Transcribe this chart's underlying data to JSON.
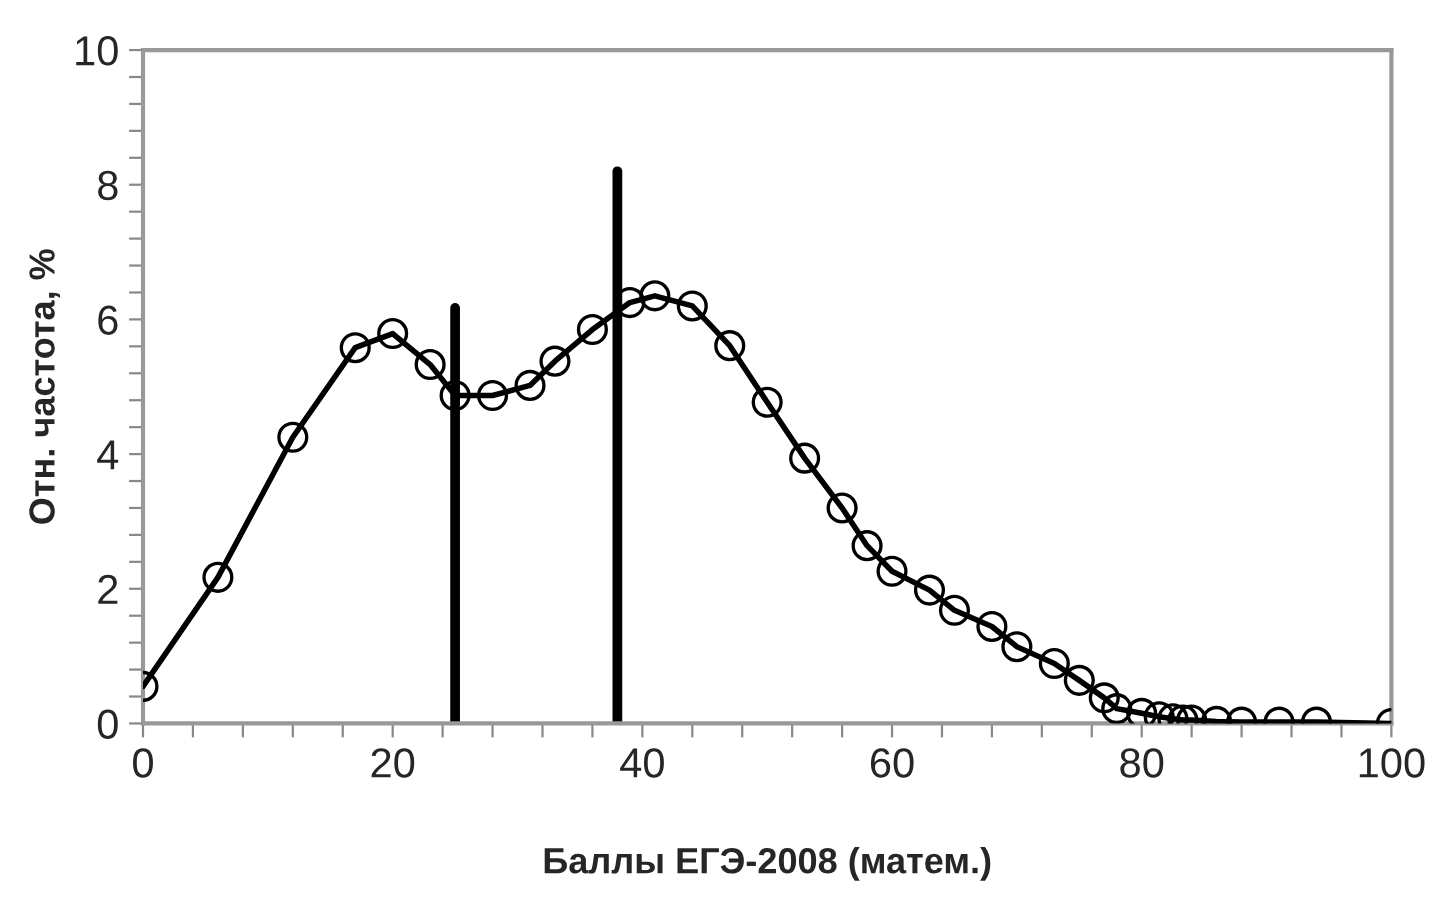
{
  "chart_data": {
    "type": "line",
    "xlabel": "Баллы ЕГЭ-2008 (матем.)",
    "ylabel": "Отн. частота, %",
    "xlim": [
      0,
      100
    ],
    "ylim": [
      0,
      10
    ],
    "xticks": [
      0,
      {
        "value": 4,
        "label": null
      },
      {
        "value": 8,
        "label": null
      },
      {
        "value": 12,
        "label": null
      },
      {
        "value": 16,
        "label": null
      },
      20,
      {
        "value": 24,
        "label": null
      },
      {
        "value": 28,
        "label": null
      },
      {
        "value": 32,
        "label": null
      },
      {
        "value": 36,
        "label": null
      },
      40,
      {
        "value": 44,
        "label": null
      },
      {
        "value": 48,
        "label": null
      },
      {
        "value": 52,
        "label": null
      },
      {
        "value": 56,
        "label": null
      },
      60,
      {
        "value": 64,
        "label": null
      },
      {
        "value": 68,
        "label": null
      },
      {
        "value": 72,
        "label": null
      },
      {
        "value": 76,
        "label": null
      },
      80,
      {
        "value": 84,
        "label": null
      },
      {
        "value": 88,
        "label": null
      },
      {
        "value": 92,
        "label": null
      },
      {
        "value": 96,
        "label": null
      },
      100
    ],
    "yticks": [
      0,
      {
        "value": 0.4,
        "label": null
      },
      {
        "value": 0.8,
        "label": null
      },
      {
        "value": 1.2,
        "label": null
      },
      {
        "value": 1.6,
        "label": null
      },
      2,
      {
        "value": 2.4,
        "label": null
      },
      {
        "value": 2.8,
        "label": null
      },
      {
        "value": 3.2,
        "label": null
      },
      {
        "value": 3.6,
        "label": null
      },
      4,
      {
        "value": 4.4,
        "label": null
      },
      {
        "value": 4.8,
        "label": null
      },
      {
        "value": 5.2,
        "label": null
      },
      {
        "value": 5.6,
        "label": null
      },
      6,
      {
        "value": 6.4,
        "label": null
      },
      {
        "value": 6.8,
        "label": null
      },
      {
        "value": 7.2,
        "label": null
      },
      {
        "value": 7.6,
        "label": null
      },
      8,
      {
        "value": 8.4,
        "label": null
      },
      {
        "value": 8.8,
        "label": null
      },
      {
        "value": 9.2,
        "label": null
      },
      {
        "value": 9.6,
        "label": null
      },
      10
    ],
    "grid": false,
    "legend": false,
    "series": [
      {
        "color": "#000000",
        "marker": "circle",
        "line_style": "solid",
        "x": [
          0,
          6,
          12,
          17,
          20,
          23,
          25,
          28,
          31,
          33,
          36,
          39,
          41,
          44,
          47,
          50,
          53,
          56,
          58,
          60,
          63,
          65,
          68,
          70,
          73,
          75,
          77,
          78,
          80,
          81.4,
          82.5,
          83.3,
          84,
          86,
          88,
          91,
          94,
          100
        ],
        "values": [
          0.55,
          2.17,
          4.25,
          5.58,
          5.79,
          5.33,
          4.87,
          4.87,
          5.02,
          5.38,
          5.85,
          6.25,
          6.35,
          6.2,
          5.61,
          4.77,
          3.94,
          3.2,
          2.64,
          2.26,
          1.98,
          1.68,
          1.44,
          1.14,
          0.89,
          0.64,
          0.38,
          0.22,
          0.15,
          0.1,
          0.07,
          0.05,
          0.05,
          0.03,
          0.02,
          0.02,
          0.02,
          0.0
        ]
      },
      {
        "color": "#000000",
        "marker": "none",
        "line_style": "solid",
        "x": [
          25,
          25
        ],
        "values": [
          0,
          6.17
        ]
      },
      {
        "color": "#000000",
        "marker": "none",
        "line_style": "solid",
        "x": [
          38,
          38
        ],
        "values": [
          0,
          8.2
        ]
      }
    ]
  }
}
